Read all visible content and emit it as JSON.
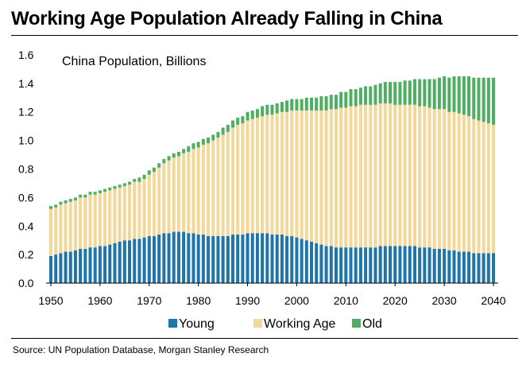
{
  "title": "Working Age Population Already Falling in China",
  "source": "Source: UN Population Database, Morgan Stanley Research",
  "colors": {
    "young": "#1f74a8",
    "working_age": "#f2d89a",
    "old": "#4fae62"
  },
  "chart_data": {
    "type": "bar",
    "stacked": true,
    "title": "China Population, Billions",
    "xlabel": "",
    "ylabel": "",
    "ylim": [
      0,
      1.6
    ],
    "yticks": [
      "0.0",
      "0.2",
      "0.4",
      "0.6",
      "0.8",
      "1.0",
      "1.2",
      "1.4",
      "1.6"
    ],
    "xticks": [
      "1950",
      "1960",
      "1970",
      "1980",
      "1990",
      "2000",
      "2010",
      "2020",
      "2030",
      "2040"
    ],
    "grid": false,
    "legend": "bottom",
    "categories": [
      1950,
      1951,
      1952,
      1953,
      1954,
      1955,
      1956,
      1957,
      1958,
      1959,
      1960,
      1961,
      1962,
      1963,
      1964,
      1965,
      1966,
      1967,
      1968,
      1969,
      1970,
      1971,
      1972,
      1973,
      1974,
      1975,
      1976,
      1977,
      1978,
      1979,
      1980,
      1981,
      1982,
      1983,
      1984,
      1985,
      1986,
      1987,
      1988,
      1989,
      1990,
      1991,
      1992,
      1993,
      1994,
      1995,
      1996,
      1997,
      1998,
      1999,
      2000,
      2001,
      2002,
      2003,
      2004,
      2005,
      2006,
      2007,
      2008,
      2009,
      2010,
      2011,
      2012,
      2013,
      2014,
      2015,
      2016,
      2017,
      2018,
      2019,
      2020,
      2021,
      2022,
      2023,
      2024,
      2025,
      2026,
      2027,
      2028,
      2029,
      2030,
      2031,
      2032,
      2033,
      2034,
      2035,
      2036,
      2037,
      2038,
      2039,
      2040
    ],
    "series": [
      {
        "name": "Young",
        "values": [
          0.19,
          0.2,
          0.21,
          0.22,
          0.22,
          0.23,
          0.24,
          0.24,
          0.25,
          0.25,
          0.26,
          0.26,
          0.27,
          0.28,
          0.29,
          0.3,
          0.3,
          0.31,
          0.31,
          0.32,
          0.33,
          0.33,
          0.34,
          0.35,
          0.35,
          0.36,
          0.36,
          0.36,
          0.35,
          0.35,
          0.34,
          0.34,
          0.33,
          0.33,
          0.33,
          0.33,
          0.33,
          0.34,
          0.34,
          0.34,
          0.35,
          0.35,
          0.35,
          0.35,
          0.35,
          0.34,
          0.34,
          0.34,
          0.33,
          0.33,
          0.32,
          0.31,
          0.3,
          0.29,
          0.28,
          0.27,
          0.26,
          0.26,
          0.25,
          0.25,
          0.25,
          0.25,
          0.25,
          0.25,
          0.25,
          0.25,
          0.25,
          0.26,
          0.26,
          0.26,
          0.26,
          0.26,
          0.26,
          0.26,
          0.26,
          0.25,
          0.25,
          0.25,
          0.24,
          0.24,
          0.24,
          0.23,
          0.23,
          0.22,
          0.22,
          0.22,
          0.21,
          0.21,
          0.21,
          0.21,
          0.21
        ]
      },
      {
        "name": "Working Age",
        "values": [
          0.33,
          0.33,
          0.34,
          0.34,
          0.35,
          0.35,
          0.36,
          0.36,
          0.37,
          0.37,
          0.37,
          0.38,
          0.38,
          0.38,
          0.38,
          0.38,
          0.39,
          0.4,
          0.4,
          0.41,
          0.43,
          0.45,
          0.47,
          0.49,
          0.51,
          0.52,
          0.53,
          0.55,
          0.57,
          0.59,
          0.61,
          0.63,
          0.65,
          0.67,
          0.69,
          0.71,
          0.73,
          0.75,
          0.77,
          0.78,
          0.79,
          0.8,
          0.81,
          0.82,
          0.83,
          0.84,
          0.85,
          0.86,
          0.87,
          0.88,
          0.89,
          0.9,
          0.91,
          0.92,
          0.93,
          0.94,
          0.95,
          0.96,
          0.97,
          0.98,
          0.98,
          0.99,
          0.99,
          1.0,
          1.0,
          1.0,
          1.0,
          1.0,
          1.0,
          1.0,
          0.99,
          0.99,
          0.99,
          0.99,
          0.99,
          0.99,
          0.99,
          0.98,
          0.98,
          0.98,
          0.98,
          0.97,
          0.97,
          0.97,
          0.96,
          0.95,
          0.94,
          0.93,
          0.92,
          0.91,
          0.9
        ]
      },
      {
        "name": "Old",
        "values": [
          0.02,
          0.02,
          0.02,
          0.02,
          0.02,
          0.02,
          0.02,
          0.02,
          0.02,
          0.02,
          0.02,
          0.02,
          0.02,
          0.02,
          0.02,
          0.02,
          0.02,
          0.02,
          0.03,
          0.03,
          0.03,
          0.03,
          0.03,
          0.03,
          0.03,
          0.03,
          0.03,
          0.03,
          0.04,
          0.04,
          0.04,
          0.04,
          0.04,
          0.04,
          0.04,
          0.05,
          0.05,
          0.05,
          0.05,
          0.05,
          0.06,
          0.06,
          0.06,
          0.07,
          0.07,
          0.07,
          0.07,
          0.07,
          0.08,
          0.08,
          0.08,
          0.08,
          0.09,
          0.09,
          0.09,
          0.1,
          0.1,
          0.1,
          0.1,
          0.11,
          0.11,
          0.12,
          0.12,
          0.12,
          0.13,
          0.13,
          0.14,
          0.14,
          0.15,
          0.15,
          0.16,
          0.16,
          0.17,
          0.17,
          0.18,
          0.19,
          0.19,
          0.2,
          0.21,
          0.22,
          0.23,
          0.24,
          0.25,
          0.26,
          0.27,
          0.28,
          0.29,
          0.3,
          0.31,
          0.32,
          0.33
        ]
      }
    ]
  }
}
